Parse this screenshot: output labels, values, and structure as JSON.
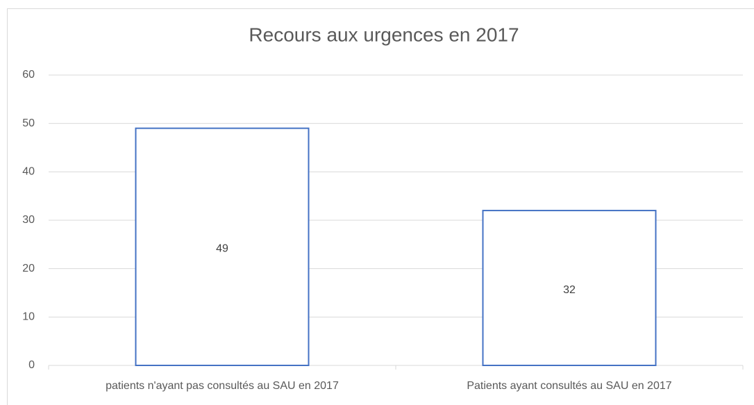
{
  "chart_data": {
    "type": "bar",
    "title": "Recours aux urgences en 2017",
    "categories": [
      "patients n'ayant pas consultés au SAU en 2017",
      "Patients ayant consultés au SAU en 2017"
    ],
    "values": [
      49,
      32
    ],
    "color": "#4472c4",
    "ylim": [
      0,
      60
    ],
    "yticks": [
      0,
      10,
      20,
      30,
      40,
      50,
      60
    ],
    "grid": true,
    "data_labels": true
  }
}
